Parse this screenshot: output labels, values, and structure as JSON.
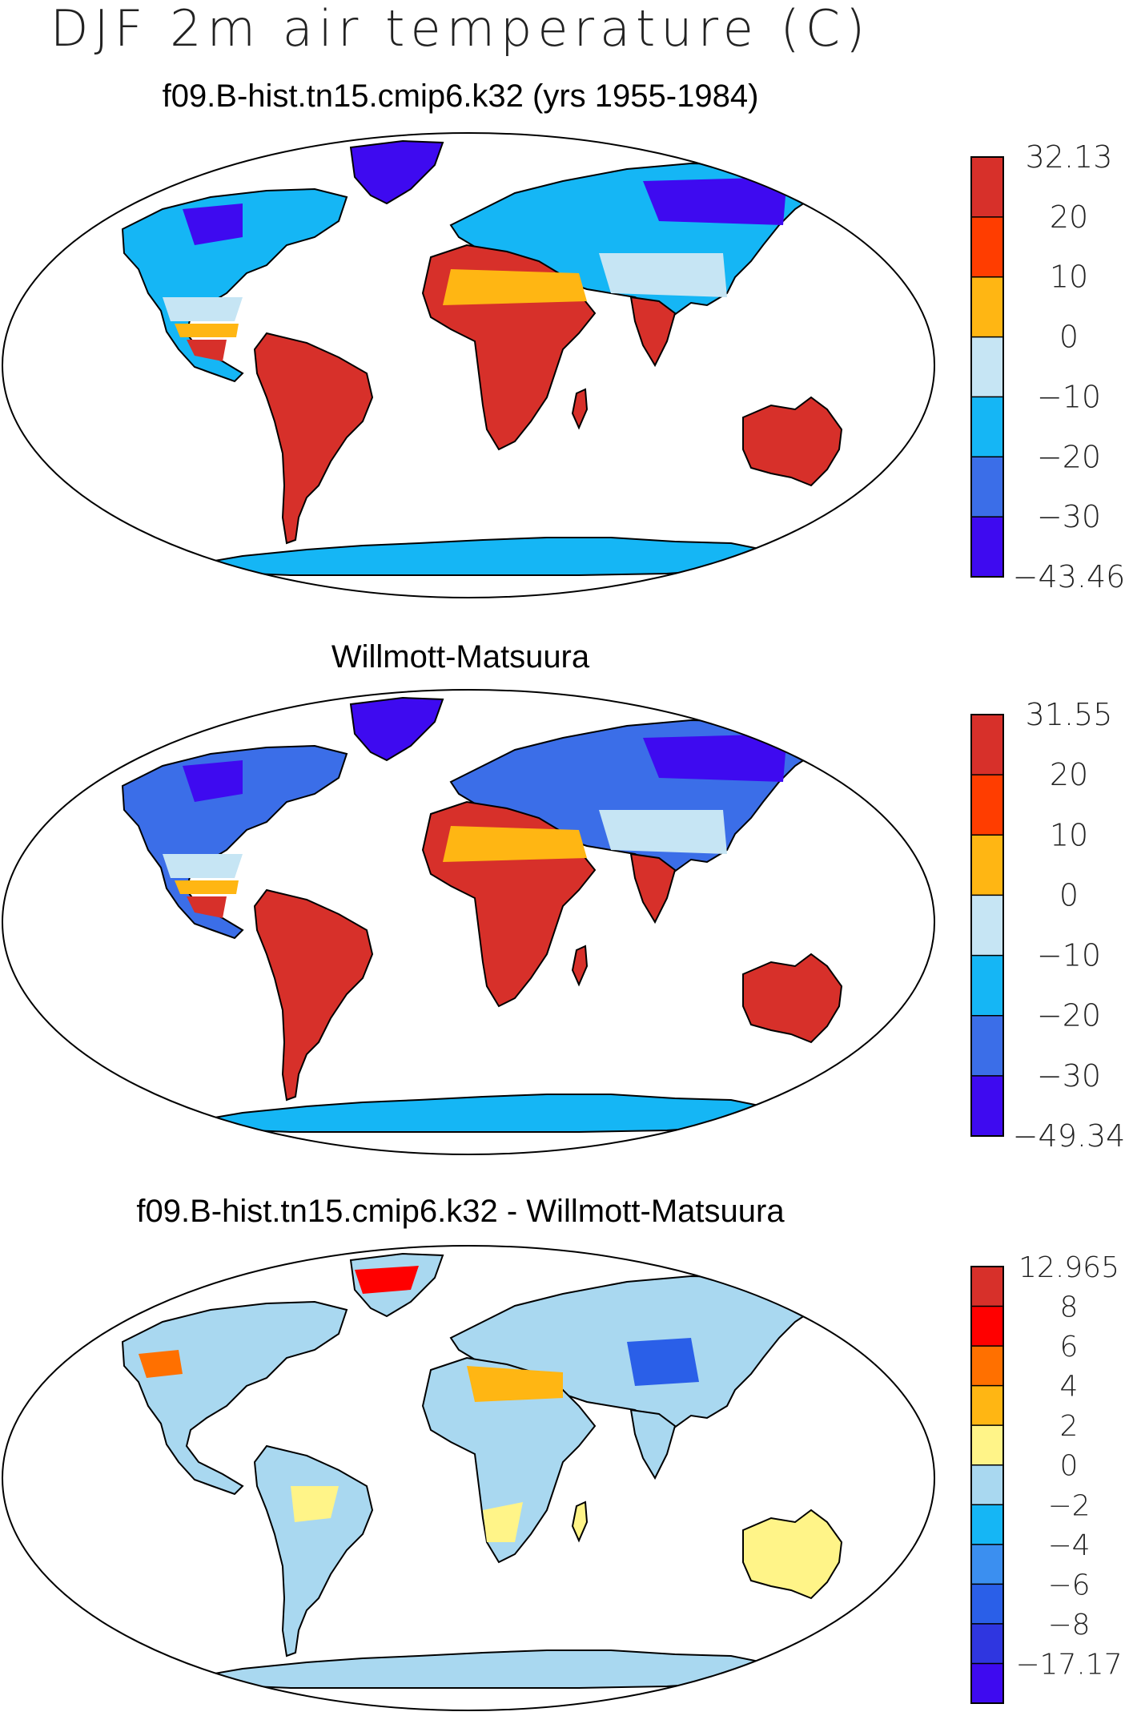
{
  "main_title": "DJF 2m air temperature (C)",
  "panels": [
    {
      "title": "f09.B-hist.tn15.cmip6.k32 (yrs 1955-1984)",
      "colorbar": {
        "labels": [
          "32.13",
          "20",
          "10",
          "0",
          "−10",
          "−20",
          "−30",
          "−43.46"
        ],
        "colors": [
          "#d7302a",
          "#ff3d00",
          "#ffb613",
          "#c6e5f4",
          "#15b6f5",
          "#3b6ee8",
          "#3e0af0"
        ]
      }
    },
    {
      "title": "Willmott-Matsuura",
      "colorbar": {
        "labels": [
          "31.55",
          "20",
          "10",
          "0",
          "−10",
          "−20",
          "−30",
          "−49.34"
        ],
        "colors": [
          "#d7302a",
          "#ff3d00",
          "#ffb613",
          "#c6e5f4",
          "#15b6f5",
          "#3b6ee8",
          "#3e0af0"
        ]
      }
    },
    {
      "title": "f09.B-hist.tn15.cmip6.k32 - Willmott-Matsuura",
      "colorbar": {
        "labels": [
          "12.965",
          "8",
          "6",
          "4",
          "2",
          "0",
          "−2",
          "−4",
          "−6",
          "−8",
          "−17.17"
        ],
        "colors": [
          "#d7302a",
          "#ff0000",
          "#ff7000",
          "#ffb613",
          "#fff488",
          "#a9d8f0",
          "#15b6f5",
          "#3b8ff0",
          "#2a5fe8",
          "#2f36e0",
          "#3e0af0"
        ]
      }
    }
  ]
}
